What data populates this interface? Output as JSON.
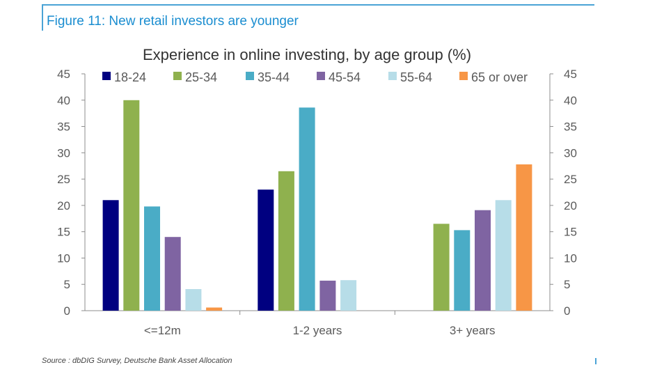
{
  "figure": {
    "title": "Figure 11: New retail investors are younger",
    "source": "Source : dbDIG Survey, Deutsche Bank Asset Allocation"
  },
  "chart_data": {
    "type": "bar",
    "title": "Experience in online investing, by age group (%)",
    "categories": [
      "<=12m",
      "1-2 years",
      "3+ years"
    ],
    "series": [
      {
        "name": "18-24",
        "color": "#000080",
        "values": [
          21,
          23,
          0
        ]
      },
      {
        "name": "25-34",
        "color": "#8fb14e",
        "values": [
          40,
          26.5,
          16.5
        ]
      },
      {
        "name": "35-44",
        "color": "#4aacc6",
        "values": [
          19.8,
          38.6,
          15.3
        ]
      },
      {
        "name": "45-54",
        "color": "#7f64a2",
        "values": [
          14,
          5.7,
          19.1
        ]
      },
      {
        "name": "55-64",
        "color": "#b7dde8",
        "values": [
          4.1,
          5.8,
          21
        ]
      },
      {
        "name": "65 or over",
        "color": "#f79646",
        "values": [
          0.6,
          0,
          27.8
        ]
      }
    ],
    "ylim": [
      0,
      45
    ],
    "yticks": [
      "0",
      "5",
      "10",
      "15",
      "20",
      "25",
      "30",
      "35",
      "40",
      "45"
    ],
    "secondary_axis": true,
    "grid": false,
    "legend_position": "top"
  }
}
